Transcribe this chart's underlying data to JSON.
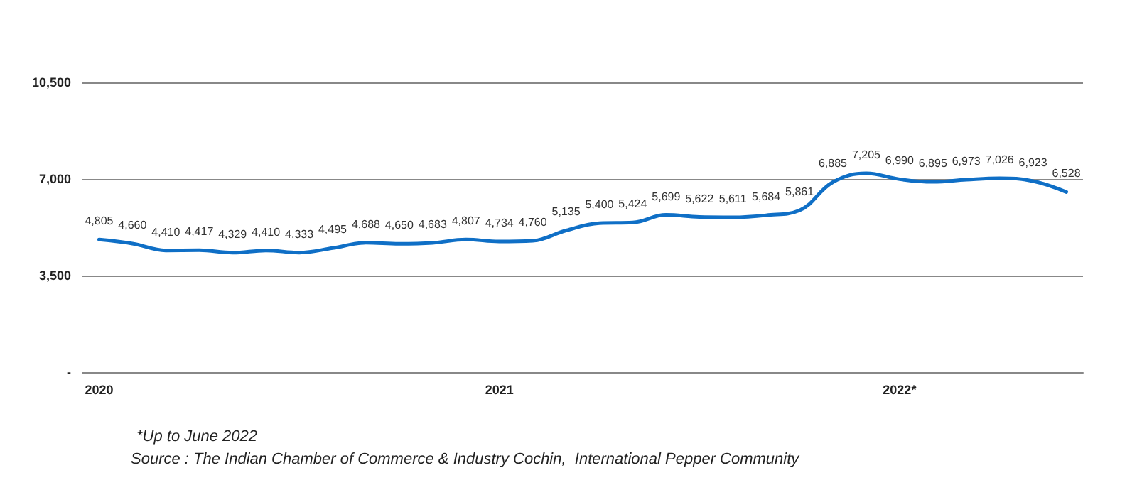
{
  "chart_data": {
    "type": "line",
    "categories": [
      "2020",
      null,
      null,
      null,
      null,
      null,
      null,
      null,
      null,
      null,
      null,
      null,
      "2021",
      null,
      null,
      null,
      null,
      null,
      null,
      null,
      null,
      null,
      null,
      null,
      "2022*",
      null,
      null,
      null,
      null,
      null
    ],
    "series": [
      {
        "color": "#0f6fc6",
        "values": [
          4805,
          4660,
          4410,
          4417,
          4329,
          4410,
          4333,
          4495,
          4688,
          4650,
          4683,
          4807,
          4734,
          4760,
          5135,
          5400,
          5424,
          5699,
          5622,
          5611,
          5684,
          5861,
          6885,
          7205,
          6990,
          6895,
          6973,
          7026,
          6923,
          6528
        ],
        "value_labels": [
          "4,805",
          "4,660",
          "4,410",
          "4,417",
          "4,329",
          "4,410",
          "4,333",
          "4,495",
          "4,688",
          "4,650",
          "4,683",
          "4,807",
          "4,734",
          "4,760",
          "5,135",
          "5,400",
          "5,424",
          "5,699",
          "5,622",
          "5,611",
          "5,684",
          "5,861",
          "6,885",
          "7,205",
          "6,990",
          "6,895",
          "6,973",
          "7,026",
          "6,923",
          "6,528"
        ]
      }
    ],
    "ylim": [
      0,
      10500
    ],
    "yticks": [
      {
        "value": 0,
        "label": "-"
      },
      {
        "value": 3500,
        "label": "3,500"
      },
      {
        "value": 7000,
        "label": "7,000"
      },
      {
        "value": 10500,
        "label": "10,500"
      }
    ],
    "grid": "y",
    "marker": "none",
    "line_style": "solid",
    "annotations": [
      "*Up to June 2022",
      "Source : The Indian Chamber of Commerce & Industry Cochin,  International Pepper Community"
    ]
  }
}
